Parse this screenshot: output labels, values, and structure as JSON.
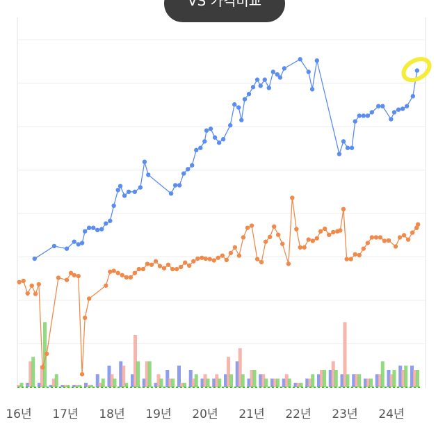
{
  "chart_data": {
    "type": "combo",
    "title": "VS 가격비교",
    "xlim": [
      15.97,
      24.75
    ],
    "xticks": [
      {
        "value": 16,
        "label": "16년"
      },
      {
        "value": 17,
        "label": "17년"
      },
      {
        "value": 18,
        "label": "18년"
      },
      {
        "value": 19,
        "label": "19년"
      },
      {
        "value": 20,
        "label": "20년"
      },
      {
        "value": 21,
        "label": "21년"
      },
      {
        "value": 22,
        "label": "22년"
      },
      {
        "value": 23,
        "label": "23년"
      },
      {
        "value": 24,
        "label": "24년"
      }
    ],
    "ylim": [
      0,
      8.45
    ],
    "grid_lines": [
      1,
      2,
      3,
      4,
      5,
      6,
      7,
      8
    ],
    "x": [
      16.0,
      16.25,
      16.5,
      16.75,
      17.0,
      17.25,
      17.5,
      17.75,
      18.0,
      18.25,
      18.5,
      18.75,
      19.0,
      19.25,
      19.5,
      19.75,
      20.0,
      20.25,
      20.5,
      20.75,
      21.0,
      21.25,
      21.5,
      21.75,
      22.0,
      22.25,
      22.5,
      22.75,
      23.0,
      23.25,
      23.5,
      23.75,
      24.0,
      24.25,
      24.5
    ],
    "series": [
      {
        "type": "line",
        "color": "#5b8def",
        "x": [
          16.34,
          16.76,
          17.03,
          17.19,
          17.28,
          17.36,
          17.42,
          17.51,
          17.6,
          17.69,
          17.78,
          17.87,
          17.96,
          18.04,
          18.13,
          18.18,
          18.27,
          18.36,
          18.49,
          18.61,
          18.7,
          18.78,
          19.27,
          19.36,
          19.45,
          19.54,
          19.63,
          19.72,
          19.81,
          19.9,
          19.99,
          20.03,
          20.12,
          20.21,
          20.3,
          20.39,
          20.54,
          20.63,
          20.72,
          20.78,
          20.85,
          20.94,
          21.03,
          21.12,
          21.19,
          21.28,
          21.37,
          21.46,
          21.55,
          21.61,
          21.7,
          22.04,
          22.22,
          22.3,
          22.4,
          22.88,
          22.97,
          23.06,
          23.15,
          23.22,
          23.31,
          23.4,
          23.49,
          23.58,
          23.72,
          23.81,
          23.99,
          24.06,
          24.15,
          24.24,
          24.33,
          24.46,
          24.55
        ],
        "values": [
          2.96,
          3.25,
          3.19,
          3.35,
          3.29,
          3.32,
          3.59,
          3.67,
          3.67,
          3.62,
          3.64,
          3.77,
          3.83,
          4.18,
          4.54,
          4.63,
          4.41,
          4.5,
          4.5,
          4.6,
          5.19,
          4.89,
          4.46,
          4.65,
          4.65,
          4.92,
          5.02,
          5.11,
          5.46,
          5.51,
          5.66,
          5.91,
          5.95,
          5.75,
          5.63,
          5.71,
          6.03,
          6.51,
          6.44,
          6.15,
          6.63,
          6.75,
          6.91,
          7.08,
          6.94,
          7.08,
          6.89,
          7.26,
          7.2,
          7.13,
          7.34,
          7.55,
          7.26,
          6.86,
          7.52,
          5.37,
          5.66,
          5.51,
          5.51,
          6.12,
          6.25,
          6.25,
          6.25,
          6.33,
          6.47,
          6.47,
          6.17,
          6.33,
          6.39,
          6.41,
          6.47,
          6.7,
          7.29
        ]
      },
      {
        "type": "line",
        "color": "#f08a4b",
        "x": [
          16.01,
          16.1,
          16.19,
          16.28,
          16.36,
          16.43,
          16.51,
          16.6,
          16.85,
          17.03,
          17.12,
          17.19,
          17.28,
          17.36,
          17.42,
          17.51,
          17.87,
          17.96,
          18.04,
          18.13,
          18.22,
          18.31,
          18.4,
          18.49,
          18.58,
          18.67,
          18.76,
          18.85,
          18.94,
          19.03,
          19.12,
          19.21,
          19.3,
          19.39,
          19.48,
          19.57,
          19.66,
          19.75,
          19.84,
          19.93,
          20.01,
          20.1,
          20.19,
          20.28,
          20.37,
          20.46,
          20.55,
          20.64,
          20.73,
          20.82,
          20.91,
          21.0,
          21.12,
          21.21,
          21.3,
          21.39,
          21.48,
          21.57,
          21.66,
          21.79,
          21.87,
          21.96,
          22.04,
          22.13,
          22.22,
          22.31,
          22.4,
          22.48,
          22.57,
          22.66,
          22.75,
          22.84,
          22.9,
          22.97,
          23.04,
          23.13,
          23.22,
          23.31,
          23.4,
          23.49,
          23.58,
          23.67,
          23.76,
          23.85,
          23.94,
          24.09,
          24.18,
          24.27,
          24.36,
          24.45,
          24.54,
          24.57
        ],
        "values": [
          2.42,
          2.45,
          2.16,
          2.34,
          2.15,
          2.37,
          0.46,
          0.77,
          2.52,
          2.47,
          2.63,
          2.58,
          2.56,
          0.3,
          1.6,
          2.04,
          2.34,
          2.66,
          2.68,
          2.63,
          2.58,
          2.53,
          2.53,
          2.63,
          2.72,
          2.72,
          2.84,
          2.82,
          2.9,
          2.79,
          2.74,
          2.82,
          2.72,
          2.72,
          2.77,
          2.87,
          2.8,
          2.9,
          2.96,
          2.98,
          2.96,
          2.95,
          2.92,
          2.98,
          3.03,
          2.93,
          3.09,
          3.22,
          3.03,
          3.45,
          3.67,
          3.72,
          2.95,
          2.88,
          3.35,
          3.46,
          3.7,
          3.51,
          3.3,
          2.84,
          4.36,
          3.64,
          3.22,
          3.22,
          3.4,
          3.37,
          3.43,
          3.59,
          3.65,
          3.51,
          3.57,
          3.59,
          3.61,
          4.1,
          2.95,
          2.95,
          3.06,
          3.04,
          3.19,
          3.32,
          3.45,
          3.45,
          3.45,
          3.37,
          3.38,
          3.24,
          3.45,
          3.5,
          3.4,
          3.56,
          3.67,
          3.75
        ]
      },
      {
        "type": "bar",
        "color": "#7a8de6",
        "values": [
          0.0,
          0.1,
          0.1,
          0.05,
          0.05,
          0.05,
          0.1,
          0.3,
          0.5,
          0.6,
          0.3,
          0.2,
          0.1,
          0.4,
          0.5,
          0.4,
          0.2,
          0.2,
          0.3,
          0.6,
          0.2,
          0.3,
          0.2,
          0.2,
          0.1,
          0.2,
          0.3,
          0.4,
          0.3,
          0.3,
          0.2,
          0.3,
          0.4,
          0.5,
          0.5
        ]
      },
      {
        "type": "bar",
        "color": "#f4a9a0",
        "values": [
          0.05,
          0.6,
          0.5,
          0.2,
          0.05,
          0.05,
          0.05,
          0.1,
          0.3,
          0.5,
          1.2,
          0.6,
          0.3,
          0.2,
          0.1,
          0.2,
          0.3,
          0.3,
          0.7,
          0.9,
          0.4,
          0.3,
          0.2,
          0.3,
          0.1,
          0.2,
          0.4,
          0.6,
          1.5,
          0.3,
          0.2,
          0.3,
          0.3,
          0.4,
          0.4
        ]
      },
      {
        "type": "bar",
        "color": "#7ed36b",
        "values": [
          0.1,
          0.7,
          1.5,
          0.3,
          0.05,
          0.05,
          0.05,
          0.2,
          0.2,
          0.1,
          0.6,
          0.6,
          0.2,
          0.2,
          0.1,
          0.3,
          0.2,
          0.2,
          0.3,
          0.3,
          0.4,
          0.2,
          0.2,
          0.2,
          0.1,
          0.3,
          0.4,
          0.4,
          0.3,
          0.3,
          0.2,
          0.6,
          0.4,
          0.5,
          0.4
        ]
      }
    ]
  }
}
